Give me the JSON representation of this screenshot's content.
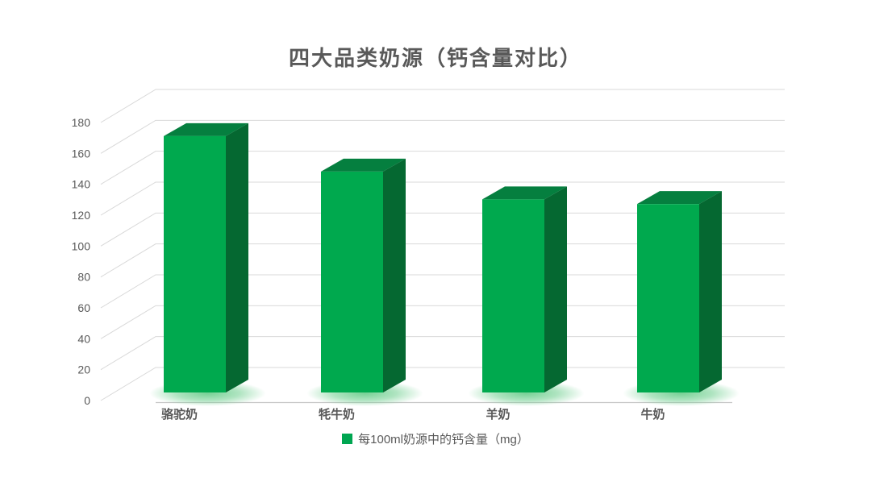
{
  "chart_data": {
    "type": "bar",
    "style": "3d-column",
    "title": "四大品类奶源（钙含量对比）",
    "categories": [
      "骆驼奶",
      "牦牛奶",
      "羊奶",
      "牛奶"
    ],
    "values": [
      166,
      143,
      125,
      122
    ],
    "series_name": "每100ml奶源中的钙含量（mg）",
    "xlabel": "",
    "ylabel": "",
    "ylim": [
      0,
      180
    ],
    "ytick_step": 20,
    "grid": true,
    "legend_position": "bottom",
    "colors": {
      "bar_front": "#00A94E",
      "bar_top": "#057F3F",
      "bar_side": "#056831",
      "shadow_glow": "#6FCF8F",
      "gridline": "#D9D9D9",
      "axis_line": "#C6C6C6",
      "text": "#595959",
      "legend_swatch": "#00A651"
    }
  }
}
